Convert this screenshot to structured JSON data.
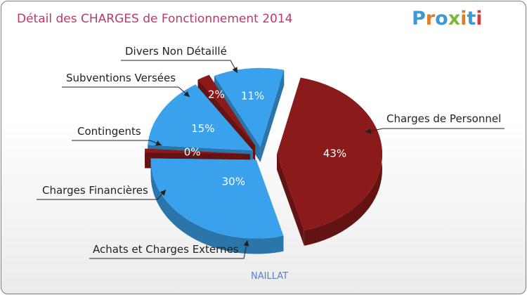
{
  "chart_data": {
    "type": "pie",
    "title": "Détail des CHARGES de Fonctionnement 2014",
    "caption": "NAILLAT",
    "slices": [
      {
        "label": "Charges de Personnel",
        "value": 43,
        "display": "43%",
        "color": "#8b1a1a"
      },
      {
        "label": "Achats et Charges Externes",
        "value": 30,
        "display": "30%",
        "color": "#3aa2ec"
      },
      {
        "label": "Charges Financières",
        "value": 0,
        "display": "0%",
        "color": "#8b1a1a"
      },
      {
        "label": "Contingents",
        "value": 15,
        "display": "15%",
        "color": "#3aa2ec"
      },
      {
        "label": "Subventions Versées",
        "value": 2,
        "display": "2%",
        "color": "#8b1a1a"
      },
      {
        "label": "Divers Non Détaillé",
        "value": 11,
        "display": "11%",
        "color": "#3aa2ec"
      }
    ]
  },
  "brand": {
    "logo_text": "Proxiti",
    "letter_colors": [
      "#3a9ad9",
      "#e07b28",
      "#3a9ad9",
      "#7fb83a",
      "#e07b28",
      "#3a9ad9",
      "#d83a3a"
    ]
  }
}
